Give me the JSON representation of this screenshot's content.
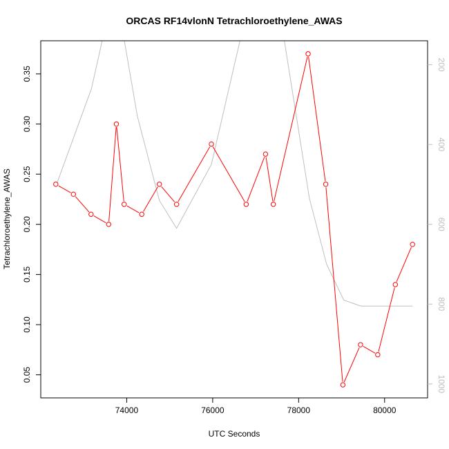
{
  "colors": {
    "primary_series": "#ff0000",
    "secondary_series": "#bebebe",
    "axis": "#000000",
    "right_axis": "#bebebe",
    "background": "#ffffff"
  },
  "chart_data": {
    "type": "line",
    "title": "ORCAS RF14vlonN Tetrachloroethylene_AWAS",
    "xlabel": "UTC Seconds",
    "ylabel": "Tetrachloroethylene_AWAS",
    "xlim": [
      72000,
      81000
    ],
    "ylim": [
      0.027,
      0.383
    ],
    "x_ticks": [
      74000,
      76000,
      78000,
      80000
    ],
    "x_tick_labels": [
      "74000",
      "76000",
      "78000",
      "80000"
    ],
    "y_ticks": [
      0.05,
      0.1,
      0.15,
      0.2,
      0.25,
      0.3,
      0.35
    ],
    "y_tick_labels": [
      "0.05",
      "0.10",
      "0.15",
      "0.20",
      "0.25",
      "0.30",
      "0.35"
    ],
    "y2_reversed": true,
    "y2lim": [
      1035,
      140
    ],
    "y2_ticks": [
      200,
      400,
      600,
      800,
      1000
    ],
    "y2_tick_labels": [
      "200",
      "400",
      "600",
      "800",
      "1000"
    ],
    "grid": false,
    "series": [
      {
        "axis": "left",
        "markers": "open-circle",
        "x": [
          72350,
          72760,
          73170,
          73580,
          73760,
          73940,
          74350,
          74760,
          75160,
          75970,
          76780,
          77230,
          77410,
          78220,
          78630,
          79030,
          79440,
          79840,
          80250,
          80650
        ],
        "y": [
          0.24,
          0.23,
          0.21,
          0.2,
          0.3,
          0.22,
          0.21,
          0.24,
          0.22,
          0.28,
          0.22,
          0.27,
          0.22,
          0.37,
          0.24,
          0.04,
          0.08,
          0.07,
          0.14,
          0.18
        ]
      },
      {
        "axis": "right",
        "markers": "none",
        "x": [
          72350,
          73180,
          73720,
          74250,
          74760,
          75160,
          75970,
          76720,
          77550,
          78250,
          78650,
          79050,
          79450,
          80650
        ],
        "y": [
          505,
          260,
          0,
          330,
          540,
          610,
          450,
          100,
          60,
          535,
          700,
          790,
          805,
          805
        ]
      }
    ]
  }
}
